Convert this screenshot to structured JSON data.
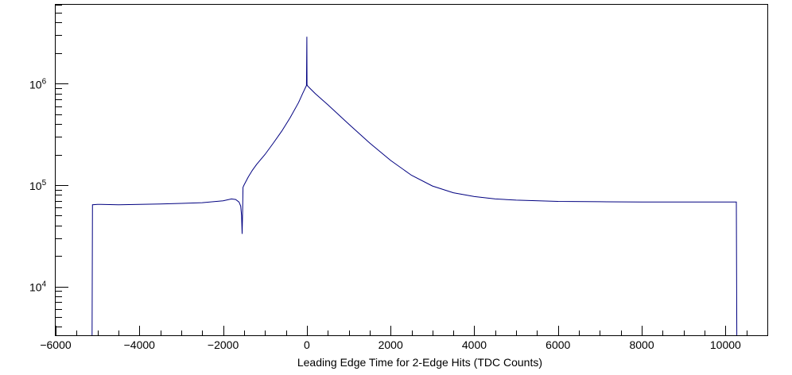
{
  "chart_data": {
    "type": "line",
    "title": "",
    "xlabel": "Leading Edge Time for 2-Edge Hits (TDC Counts)",
    "ylabel": "",
    "xlim": [
      -6000,
      11000
    ],
    "ylim": [
      3300,
      6000000
    ],
    "yscale": "log",
    "grid": false,
    "legend": "none",
    "line_color": "#000080",
    "x_tick_labels": [
      "-6000",
      "-4000",
      "-2000",
      "0",
      "2000",
      "4000",
      "6000",
      "8000",
      "10000"
    ],
    "x_tick_values": [
      -6000,
      -4000,
      -2000,
      0,
      2000,
      4000,
      6000,
      8000,
      10000
    ],
    "y_tick_labels": [
      {
        "base": "10",
        "exp": "4",
        "value": 10000
      },
      {
        "base": "10",
        "exp": "5",
        "value": 100000
      },
      {
        "base": "10",
        "exp": "6",
        "value": 1000000
      }
    ],
    "series": [
      {
        "x": [
          -5130,
          -5120,
          -5000,
          -4500,
          -4000,
          -3500,
          -3000,
          -2500,
          -2000,
          -1800,
          -1700,
          -1620,
          -1580,
          -1560,
          -1545,
          -1535,
          -1525,
          -1500,
          -1400,
          -1300,
          -1200,
          -1000,
          -800,
          -600,
          -400,
          -200,
          -100,
          -30,
          -10,
          0,
          5,
          10,
          20,
          50,
          200,
          500,
          1000,
          1500,
          2000,
          2500,
          3000,
          3500,
          4000,
          4500,
          5000,
          6000,
          7000,
          8000,
          9000,
          10000,
          10200,
          10260,
          10270
        ],
        "y": [
          3300,
          64000,
          64500,
          64000,
          64500,
          65000,
          66000,
          67000,
          70000,
          73000,
          72000,
          68000,
          62000,
          50000,
          33000,
          55000,
          95000,
          100000,
          120000,
          140000,
          160000,
          200000,
          260000,
          340000,
          460000,
          650000,
          800000,
          920000,
          960000,
          2900000,
          980000,
          960000,
          950000,
          920000,
          800000,
          620000,
          400000,
          260000,
          175000,
          125000,
          98000,
          84000,
          77000,
          73000,
          71000,
          69000,
          68500,
          68000,
          68000,
          68000,
          68000,
          68000,
          3300
        ]
      }
    ]
  }
}
